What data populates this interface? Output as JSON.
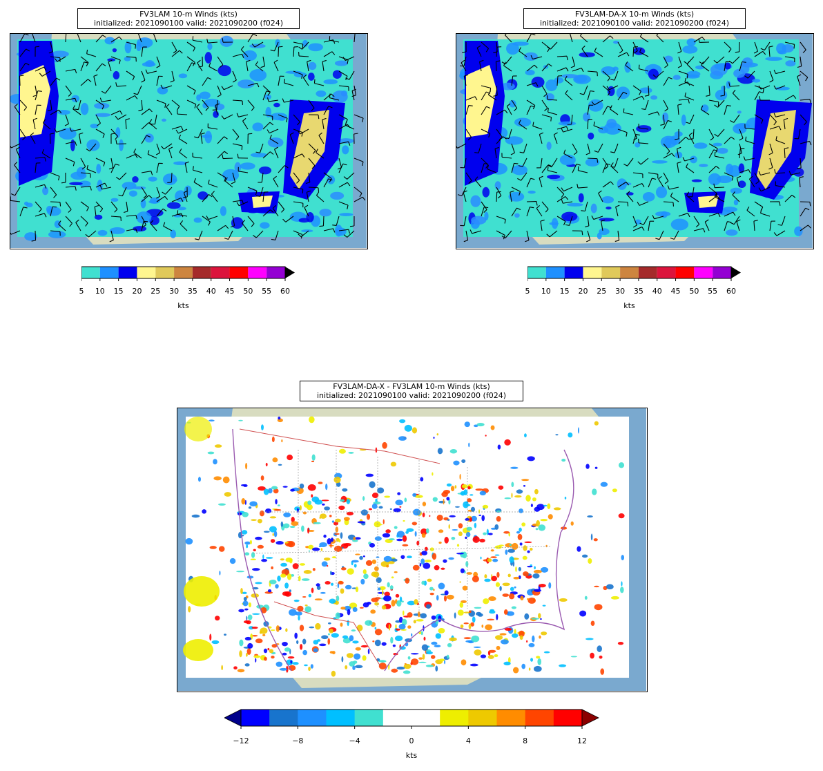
{
  "panels": {
    "top_left": {
      "title_line1": "FV3LAM 10-m Winds (kts)",
      "title_line2": "initialized: 2021090100 valid: 2021090200 (f024)"
    },
    "top_right": {
      "title_line1": "FV3LAM-DA-X 10-m Winds (kts)",
      "title_line2": "initialized: 2021090100 valid: 2021090200 (f024)"
    },
    "bottom": {
      "title_line1": "FV3LAM-DA-X - FV3LAM 10-m Winds (kts)",
      "title_line2": "initialized: 2021090100 valid: 2021090200 (f024)"
    }
  },
  "wind_colorbar": {
    "ticks": [
      "5",
      "10",
      "15",
      "20",
      "25",
      "30",
      "35",
      "40",
      "45",
      "50",
      "55",
      "60"
    ],
    "colors": [
      "#40e0d0",
      "#1e90ff",
      "#0000ee",
      "#fff68f",
      "#e0c95a",
      "#cd853f",
      "#a52a2a",
      "#dc143c",
      "#ff0000",
      "#ff00ff",
      "#9400d3"
    ],
    "extend_color": "#000000",
    "label": "kts"
  },
  "diff_colorbar": {
    "ticks": [
      "−12",
      "−8",
      "−4",
      "0",
      "4",
      "8",
      "12"
    ],
    "colors": [
      "#0000ff",
      "#1874cd",
      "#1e90ff",
      "#00bfff",
      "#40e0d0",
      "#ffffff",
      "#ffffff",
      "#eeee00",
      "#eec900",
      "#ff8c00",
      "#ff4500",
      "#ff0000"
    ],
    "low_extend_color": "#00008b",
    "high_extend_color": "#8b0000",
    "label": "kts"
  },
  "map_colors": {
    "ocean": "#7aa9cf",
    "land": "#d8dcc0",
    "wind_cyan": "#40e0d0",
    "state_border": "#999999",
    "country_border": "#d05050",
    "coast": "#9a5ab0"
  }
}
